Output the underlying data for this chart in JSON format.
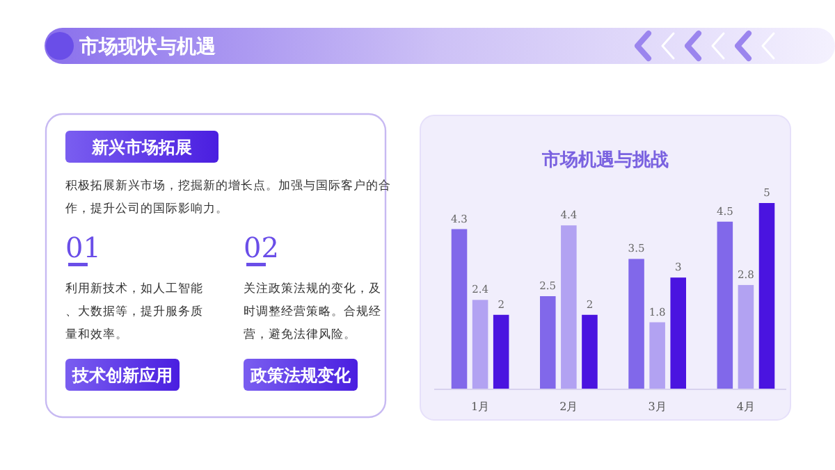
{
  "chart_data": [
    {
      "type": "other",
      "title": "市场现状与机遇",
      "annotations": [
        "新兴市场拓展",
        "积极拓展新兴市场，挖掘新的增长点。加强与国际客户的合作，提升公司的国际影响力。",
        "01",
        "利用新技术，如人工智能、大数据等，提升服务质量和效率。",
        "02",
        "关注政策法规的变化，及时调整经营策略。合规经营，避免法律风险。",
        "技术创新应用",
        "政策法规变化"
      ]
    },
    {
      "type": "bar",
      "title": "市场机遇与挑战",
      "categories": [
        "1月",
        "2月",
        "3月",
        "4月"
      ],
      "tick_labels": "x",
      "data_labels": true,
      "series": [
        {
          "color": "#8168ea",
          "values": [
            4.3,
            2.5,
            3.5,
            4.5
          ]
        },
        {
          "color": "#b2a2f2",
          "values": [
            2.4,
            4.4,
            1.8,
            2.8
          ]
        },
        {
          "color": "#4a14e0",
          "values": [
            2,
            2,
            3,
            5
          ]
        }
      ]
    }
  ]
}
